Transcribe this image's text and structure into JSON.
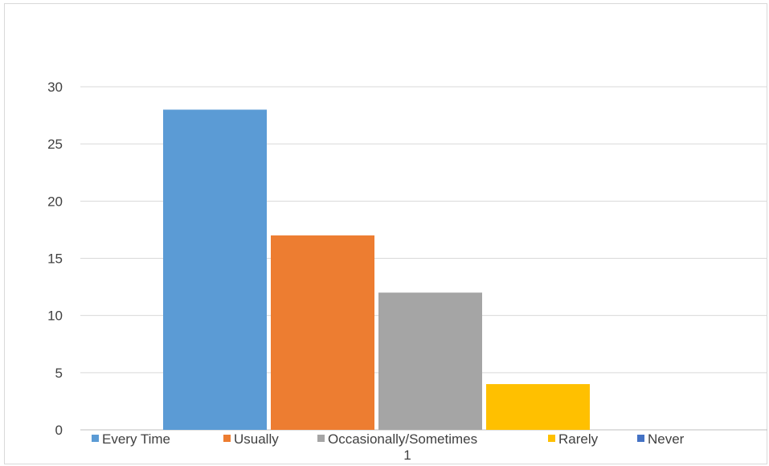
{
  "chart_data": {
    "type": "bar",
    "categories": [
      "1"
    ],
    "series": [
      {
        "name": "Every Time",
        "values": [
          28
        ],
        "color": "#5b9bd5"
      },
      {
        "name": "Usually",
        "values": [
          17
        ],
        "color": "#ed7d31"
      },
      {
        "name": "Occasionally/Sometimes",
        "values": [
          12
        ],
        "color": "#a5a5a5"
      },
      {
        "name": "Rarely",
        "values": [
          4
        ],
        "color": "#ffc000"
      },
      {
        "name": "Never",
        "values": [
          0
        ],
        "color": "#4472c4"
      }
    ],
    "title": "",
    "xlabel": "",
    "ylabel": "",
    "ylim": [
      0,
      30
    ],
    "yticks": [
      0,
      5,
      10,
      15,
      20,
      25,
      30
    ],
    "grid": true,
    "legend_position": "bottom"
  }
}
